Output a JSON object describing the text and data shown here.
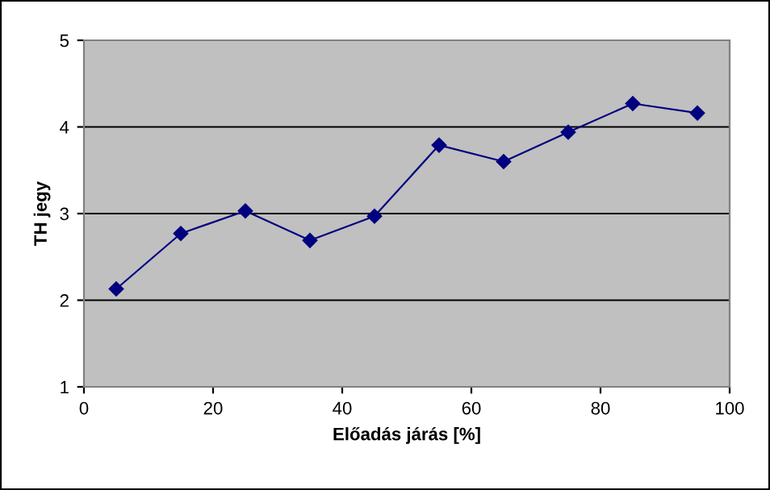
{
  "chart_data": {
    "type": "line",
    "xlabel": "Előadás járás [%]",
    "ylabel": "TH jegy",
    "x": [
      5,
      15,
      25,
      35,
      45,
      55,
      65,
      75,
      85,
      95
    ],
    "series": [
      {
        "color": "#000080",
        "values": [
          2.13,
          2.77,
          3.03,
          2.69,
          2.97,
          3.79,
          3.6,
          3.94,
          4.27,
          4.16
        ]
      }
    ],
    "xlim": [
      0,
      100
    ],
    "xticks": [
      0,
      20,
      40,
      60,
      80,
      100
    ],
    "ylim": [
      1,
      5
    ],
    "yticks": [
      1,
      2,
      3,
      4,
      5
    ],
    "grid": "y",
    "marker": "diamond",
    "line_style": "solid",
    "legend": false
  }
}
